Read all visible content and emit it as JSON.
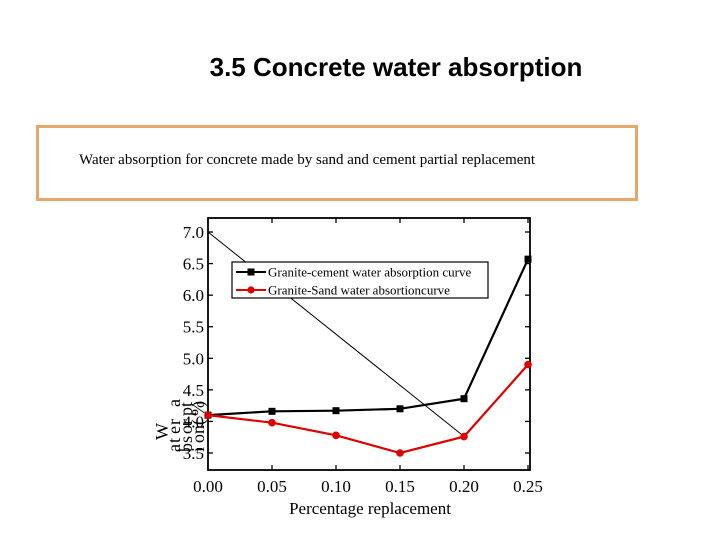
{
  "slide": {
    "title": "3.5 Concrete water absorption",
    "caption": "Water absorption for concrete made by sand and cement partial replacement"
  },
  "colors": {
    "caption_border": "#e6a76b",
    "series_cement": "#000000",
    "series_sand": "#e00000"
  },
  "chart_data": {
    "type": "line",
    "title": "",
    "xlabel": "Percentage replacement",
    "ylabel": "Water absorption(%)",
    "xlim": [
      0.0,
      0.25
    ],
    "ylim": [
      3.4,
      7.0
    ],
    "xticks": [
      "0.00",
      "0.05",
      "0.10",
      "0.15",
      "0.20",
      "0.25"
    ],
    "yticks": [
      "3.5",
      "4.0",
      "4.5",
      "5.0",
      "5.5",
      "6.0",
      "6.5",
      "7.0"
    ],
    "x": [
      0.0,
      0.05,
      0.1,
      0.15,
      0.2,
      0.25
    ],
    "series": [
      {
        "name": "Granite-cement water absorption curve",
        "marker": "square",
        "values": [
          4.1,
          4.16,
          4.17,
          4.2,
          4.36,
          6.57
        ]
      },
      {
        "name": "Granite-Sand water absortioncurve",
        "marker": "circle",
        "values": [
          4.1,
          3.98,
          3.78,
          3.5,
          3.76,
          4.9
        ]
      }
    ],
    "legend_position": "upper-right",
    "grid": false
  }
}
